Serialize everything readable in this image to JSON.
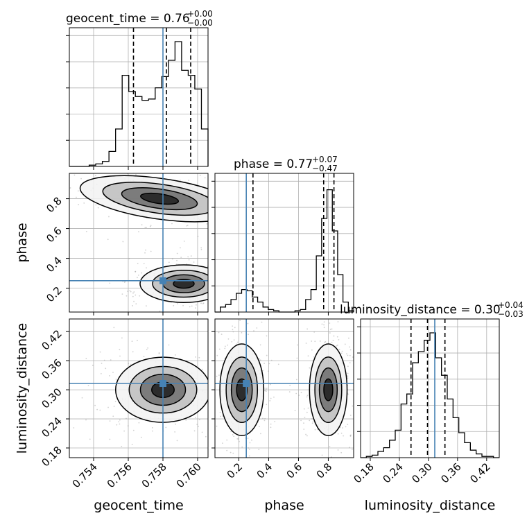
{
  "colors": {
    "truth": "#4682b4",
    "hist": "#000000",
    "quantile": "#000000",
    "grid": "#b0b0b0",
    "points": "#9a9a9a",
    "density_dark": "#000000",
    "density_light": "#ffffff"
  },
  "chart_data": {
    "type": "corner",
    "grid": true,
    "parameters": [
      "geocent_time",
      "phase",
      "luminosity_distance"
    ],
    "truths": {
      "geocent_time": 0.758,
      "phase": 0.25,
      "luminosity_distance": 0.313
    },
    "titles": {
      "geocent_time": {
        "text": "geocent_time = 0.76",
        "plus": "+0.00",
        "minus": "−0.00"
      },
      "phase": {
        "text": "phase = 0.77",
        "plus": "+0.07",
        "minus": "−0.47"
      },
      "luminosity_distance": {
        "text": "luminosity_distance = 0.30",
        "plus": "+0.04",
        "minus": "−0.03"
      }
    },
    "axis_labels": {
      "geocent_time": "geocent_time",
      "phase": "phase",
      "luminosity_distance": "luminosity_distance"
    },
    "ranges": {
      "geocent_time": [
        0.7526,
        0.7606
      ],
      "phase": [
        0.04,
        0.97
      ],
      "luminosity_distance": [
        0.16,
        0.446
      ]
    },
    "ticks": {
      "geocent_time": {
        "values": [
          0.754,
          0.756,
          0.758,
          0.76
        ],
        "labels": [
          "0.754",
          "0.756",
          "0.758",
          "0.760"
        ]
      },
      "phase": {
        "values": [
          0.2,
          0.4,
          0.6,
          0.8
        ],
        "labels": [
          "0.2",
          "0.4",
          "0.6",
          "0.8"
        ]
      },
      "luminosity_distance": {
        "values": [
          0.18,
          0.24,
          0.3,
          0.36,
          0.42
        ],
        "labels": [
          "0.18",
          "0.24",
          "0.30",
          "0.36",
          "0.42"
        ]
      }
    },
    "quantiles": {
      "geocent_time": [
        0.7563,
        0.7582,
        0.7596
      ],
      "phase": [
        0.295,
        0.769,
        0.838
      ],
      "luminosity_distance": [
        0.264,
        0.298,
        0.334
      ]
    },
    "histograms": {
      "geocent_time": {
        "counts": [
          0,
          0,
          0,
          0.01,
          0.02,
          0.04,
          0.12,
          0.3,
          0.73,
          0.6,
          0.56,
          0.53,
          0.54,
          0.63,
          0.72,
          0.85,
          1.0,
          0.77,
          0.73,
          0.62,
          0.3
        ]
      },
      "phase": {
        "counts": [
          0,
          0.04,
          0.06,
          0.1,
          0.15,
          0.18,
          0.17,
          0.12,
          0.08,
          0.04,
          0.02,
          0.01,
          0,
          0,
          0,
          0.01,
          0.02,
          0.1,
          0.18,
          0.45,
          0.75,
          0.98,
          0.65,
          0.3,
          0.08,
          0.01
        ]
      },
      "luminosity_distance": {
        "counts": [
          0,
          0.01,
          0.02,
          0.05,
          0.08,
          0.14,
          0.22,
          0.43,
          0.51,
          0.76,
          0.85,
          0.94,
          1.0,
          0.8,
          0.66,
          0.47,
          0.32,
          0.2,
          0.12,
          0.06,
          0.03,
          0.01,
          0.01,
          0
        ]
      }
    },
    "density_shapes": {
      "phase_vs_geocent_time": [
        {
          "cx": 0.7578,
          "cy": 0.8,
          "sx": 0.0022,
          "sy": 0.065,
          "tilt": -0.55
        },
        {
          "cx": 0.7592,
          "cy": 0.23,
          "sx": 0.0012,
          "sy": 0.06,
          "tilt": 0.0
        }
      ],
      "luminosity_distance_vs_geocent_time": [
        {
          "cx": 0.758,
          "cy": 0.3,
          "sx": 0.0013,
          "sy": 0.032,
          "tilt": 0.0
        }
      ],
      "luminosity_distance_vs_phase": [
        {
          "cx": 0.22,
          "cy": 0.3,
          "sx": 0.07,
          "sy": 0.045,
          "tilt": 0.0
        },
        {
          "cx": 0.8,
          "cy": 0.3,
          "sx": 0.06,
          "sy": 0.045,
          "tilt": 0.0
        }
      ]
    }
  }
}
